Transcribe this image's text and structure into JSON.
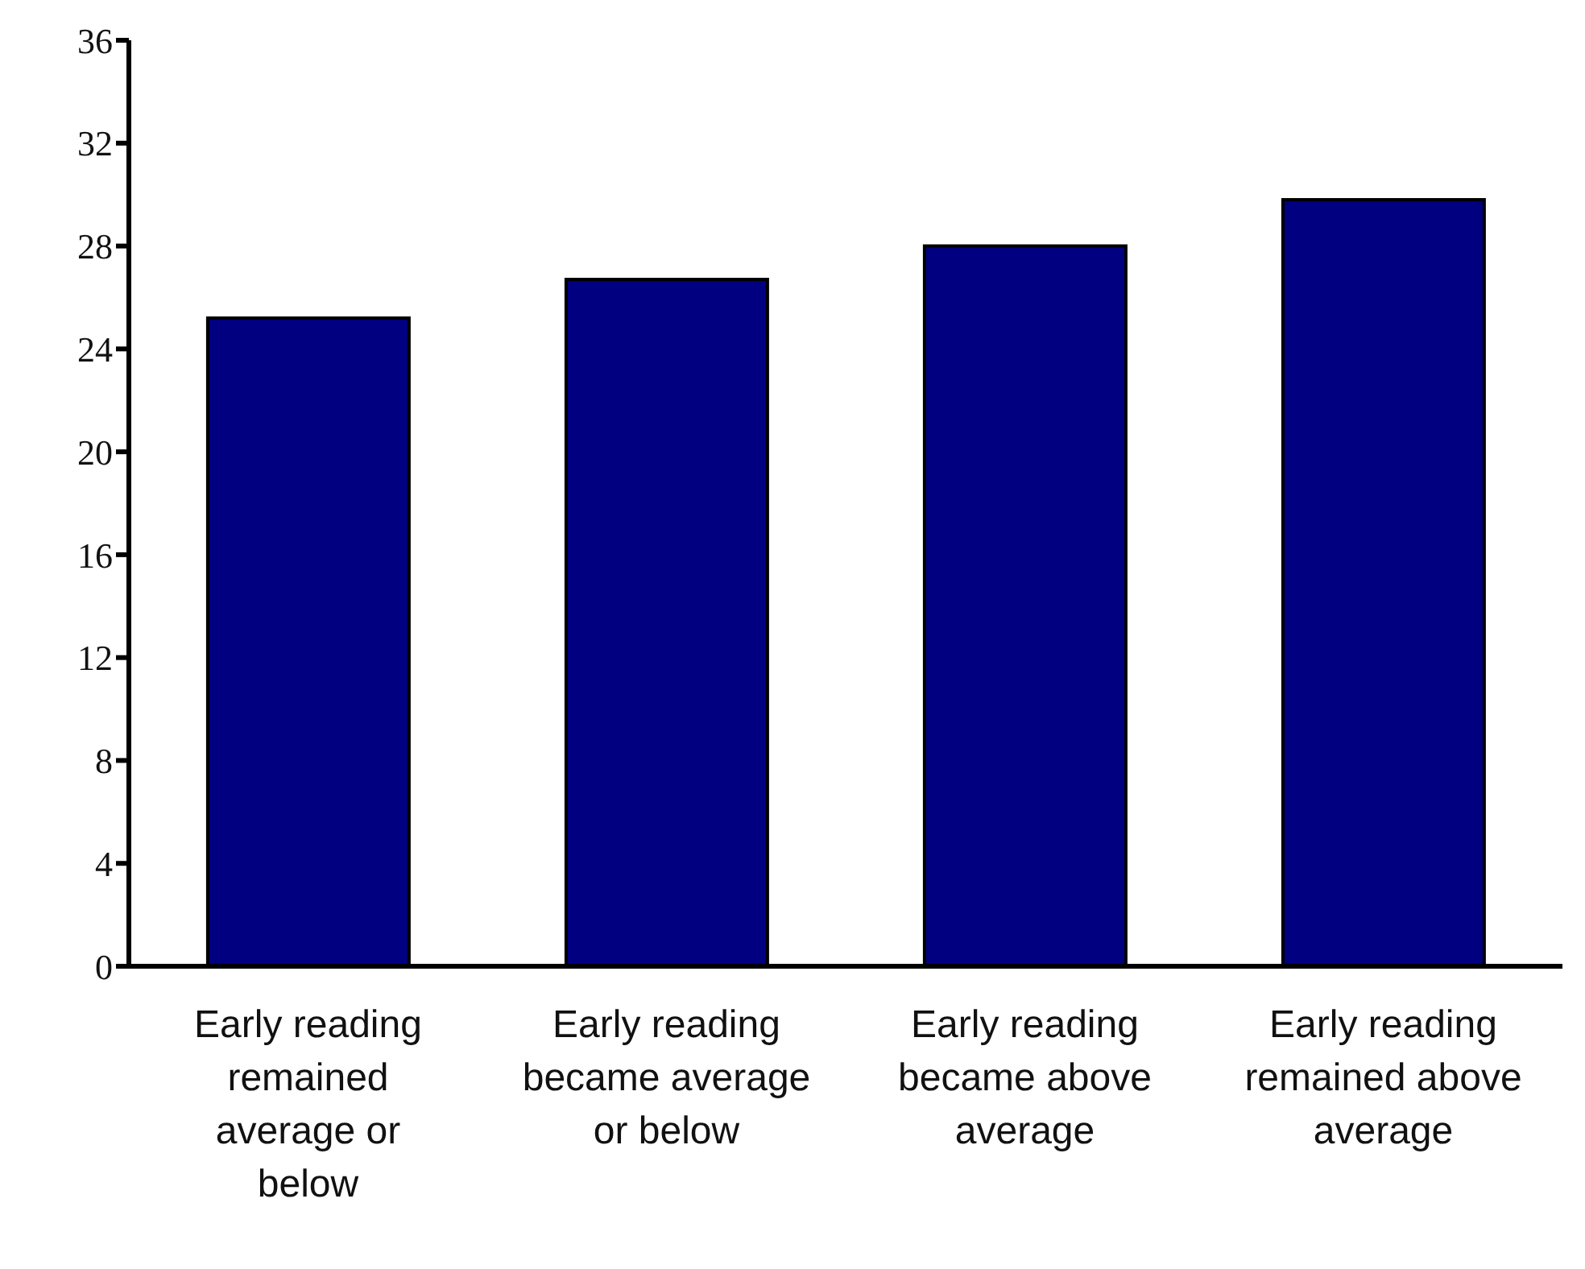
{
  "chart_data": {
    "type": "bar",
    "categories": [
      "Early reading remained average or below",
      "Early reading became average or below",
      "Early reading became above average",
      "Early reading remained above average"
    ],
    "values": [
      25.2,
      26.7,
      28.0,
      29.8
    ],
    "color": "#000080",
    "ylim": [
      0,
      36
    ],
    "yticks": [
      0,
      4,
      8,
      12,
      16,
      20,
      24,
      28,
      32,
      36
    ],
    "grid": false,
    "legend": false
  }
}
